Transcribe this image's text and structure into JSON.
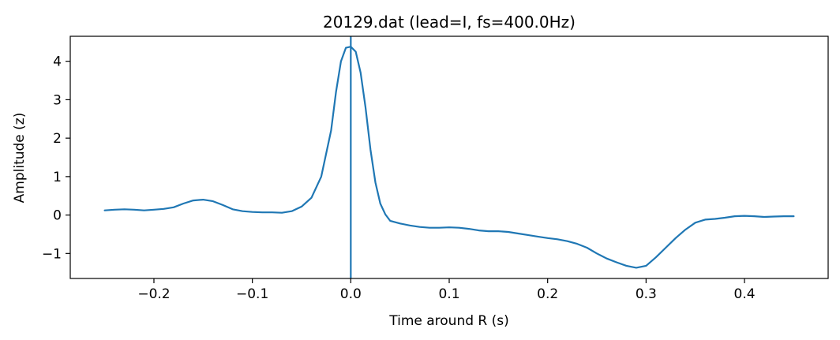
{
  "chart_data": {
    "type": "line",
    "title": "20129.dat (lead=I, fs=400.0Hz)",
    "xlabel": "Time around R (s)",
    "ylabel": "Amplitude (z)",
    "xlim": [
      -0.285,
      0.485
    ],
    "ylim": [
      -1.65,
      4.65
    ],
    "xticks": [
      -0.2,
      -0.1,
      0.0,
      0.1,
      0.2,
      0.3,
      0.4
    ],
    "xtick_labels": [
      "−0.2",
      "−0.1",
      "0.0",
      "0.1",
      "0.2",
      "0.3",
      "0.4"
    ],
    "yticks": [
      -1,
      0,
      1,
      2,
      3,
      4
    ],
    "ytick_labels": [
      "−1",
      "0",
      "1",
      "2",
      "3",
      "4"
    ],
    "grid": false,
    "vline_x": 0.0,
    "line_color": "#1f77b4",
    "series": [
      {
        "x": [
          -0.25,
          -0.24,
          -0.23,
          -0.22,
          -0.21,
          -0.2,
          -0.19,
          -0.18,
          -0.17,
          -0.16,
          -0.15,
          -0.14,
          -0.13,
          -0.12,
          -0.11,
          -0.1,
          -0.09,
          -0.08,
          -0.07,
          -0.06,
          -0.05,
          -0.04,
          -0.03,
          -0.02,
          -0.015,
          -0.01,
          -0.005,
          0.0,
          0.005,
          0.01,
          0.015,
          0.02,
          0.025,
          0.03,
          0.035,
          0.04,
          0.05,
          0.06,
          0.07,
          0.08,
          0.09,
          0.1,
          0.11,
          0.12,
          0.13,
          0.14,
          0.15,
          0.16,
          0.17,
          0.18,
          0.19,
          0.2,
          0.21,
          0.22,
          0.23,
          0.24,
          0.25,
          0.26,
          0.27,
          0.28,
          0.29,
          0.3,
          0.31,
          0.32,
          0.33,
          0.34,
          0.35,
          0.36,
          0.37,
          0.38,
          0.39,
          0.4,
          0.41,
          0.42,
          0.43,
          0.44,
          0.45
        ],
        "values": [
          0.12,
          0.14,
          0.15,
          0.14,
          0.12,
          0.14,
          0.16,
          0.2,
          0.3,
          0.38,
          0.4,
          0.36,
          0.26,
          0.15,
          0.1,
          0.08,
          0.07,
          0.07,
          0.06,
          0.1,
          0.22,
          0.45,
          1.0,
          2.2,
          3.2,
          4.0,
          4.35,
          4.38,
          4.25,
          3.7,
          2.8,
          1.7,
          0.85,
          0.3,
          0.02,
          -0.15,
          -0.22,
          -0.27,
          -0.31,
          -0.33,
          -0.33,
          -0.32,
          -0.33,
          -0.36,
          -0.4,
          -0.42,
          -0.42,
          -0.44,
          -0.48,
          -0.52,
          -0.56,
          -0.6,
          -0.63,
          -0.68,
          -0.75,
          -0.85,
          -1.0,
          -1.13,
          -1.23,
          -1.32,
          -1.37,
          -1.32,
          -1.1,
          -0.85,
          -0.6,
          -0.38,
          -0.2,
          -0.12,
          -0.1,
          -0.07,
          -0.03,
          -0.02,
          -0.03,
          -0.05,
          -0.04,
          -0.03,
          -0.03
        ]
      }
    ]
  }
}
